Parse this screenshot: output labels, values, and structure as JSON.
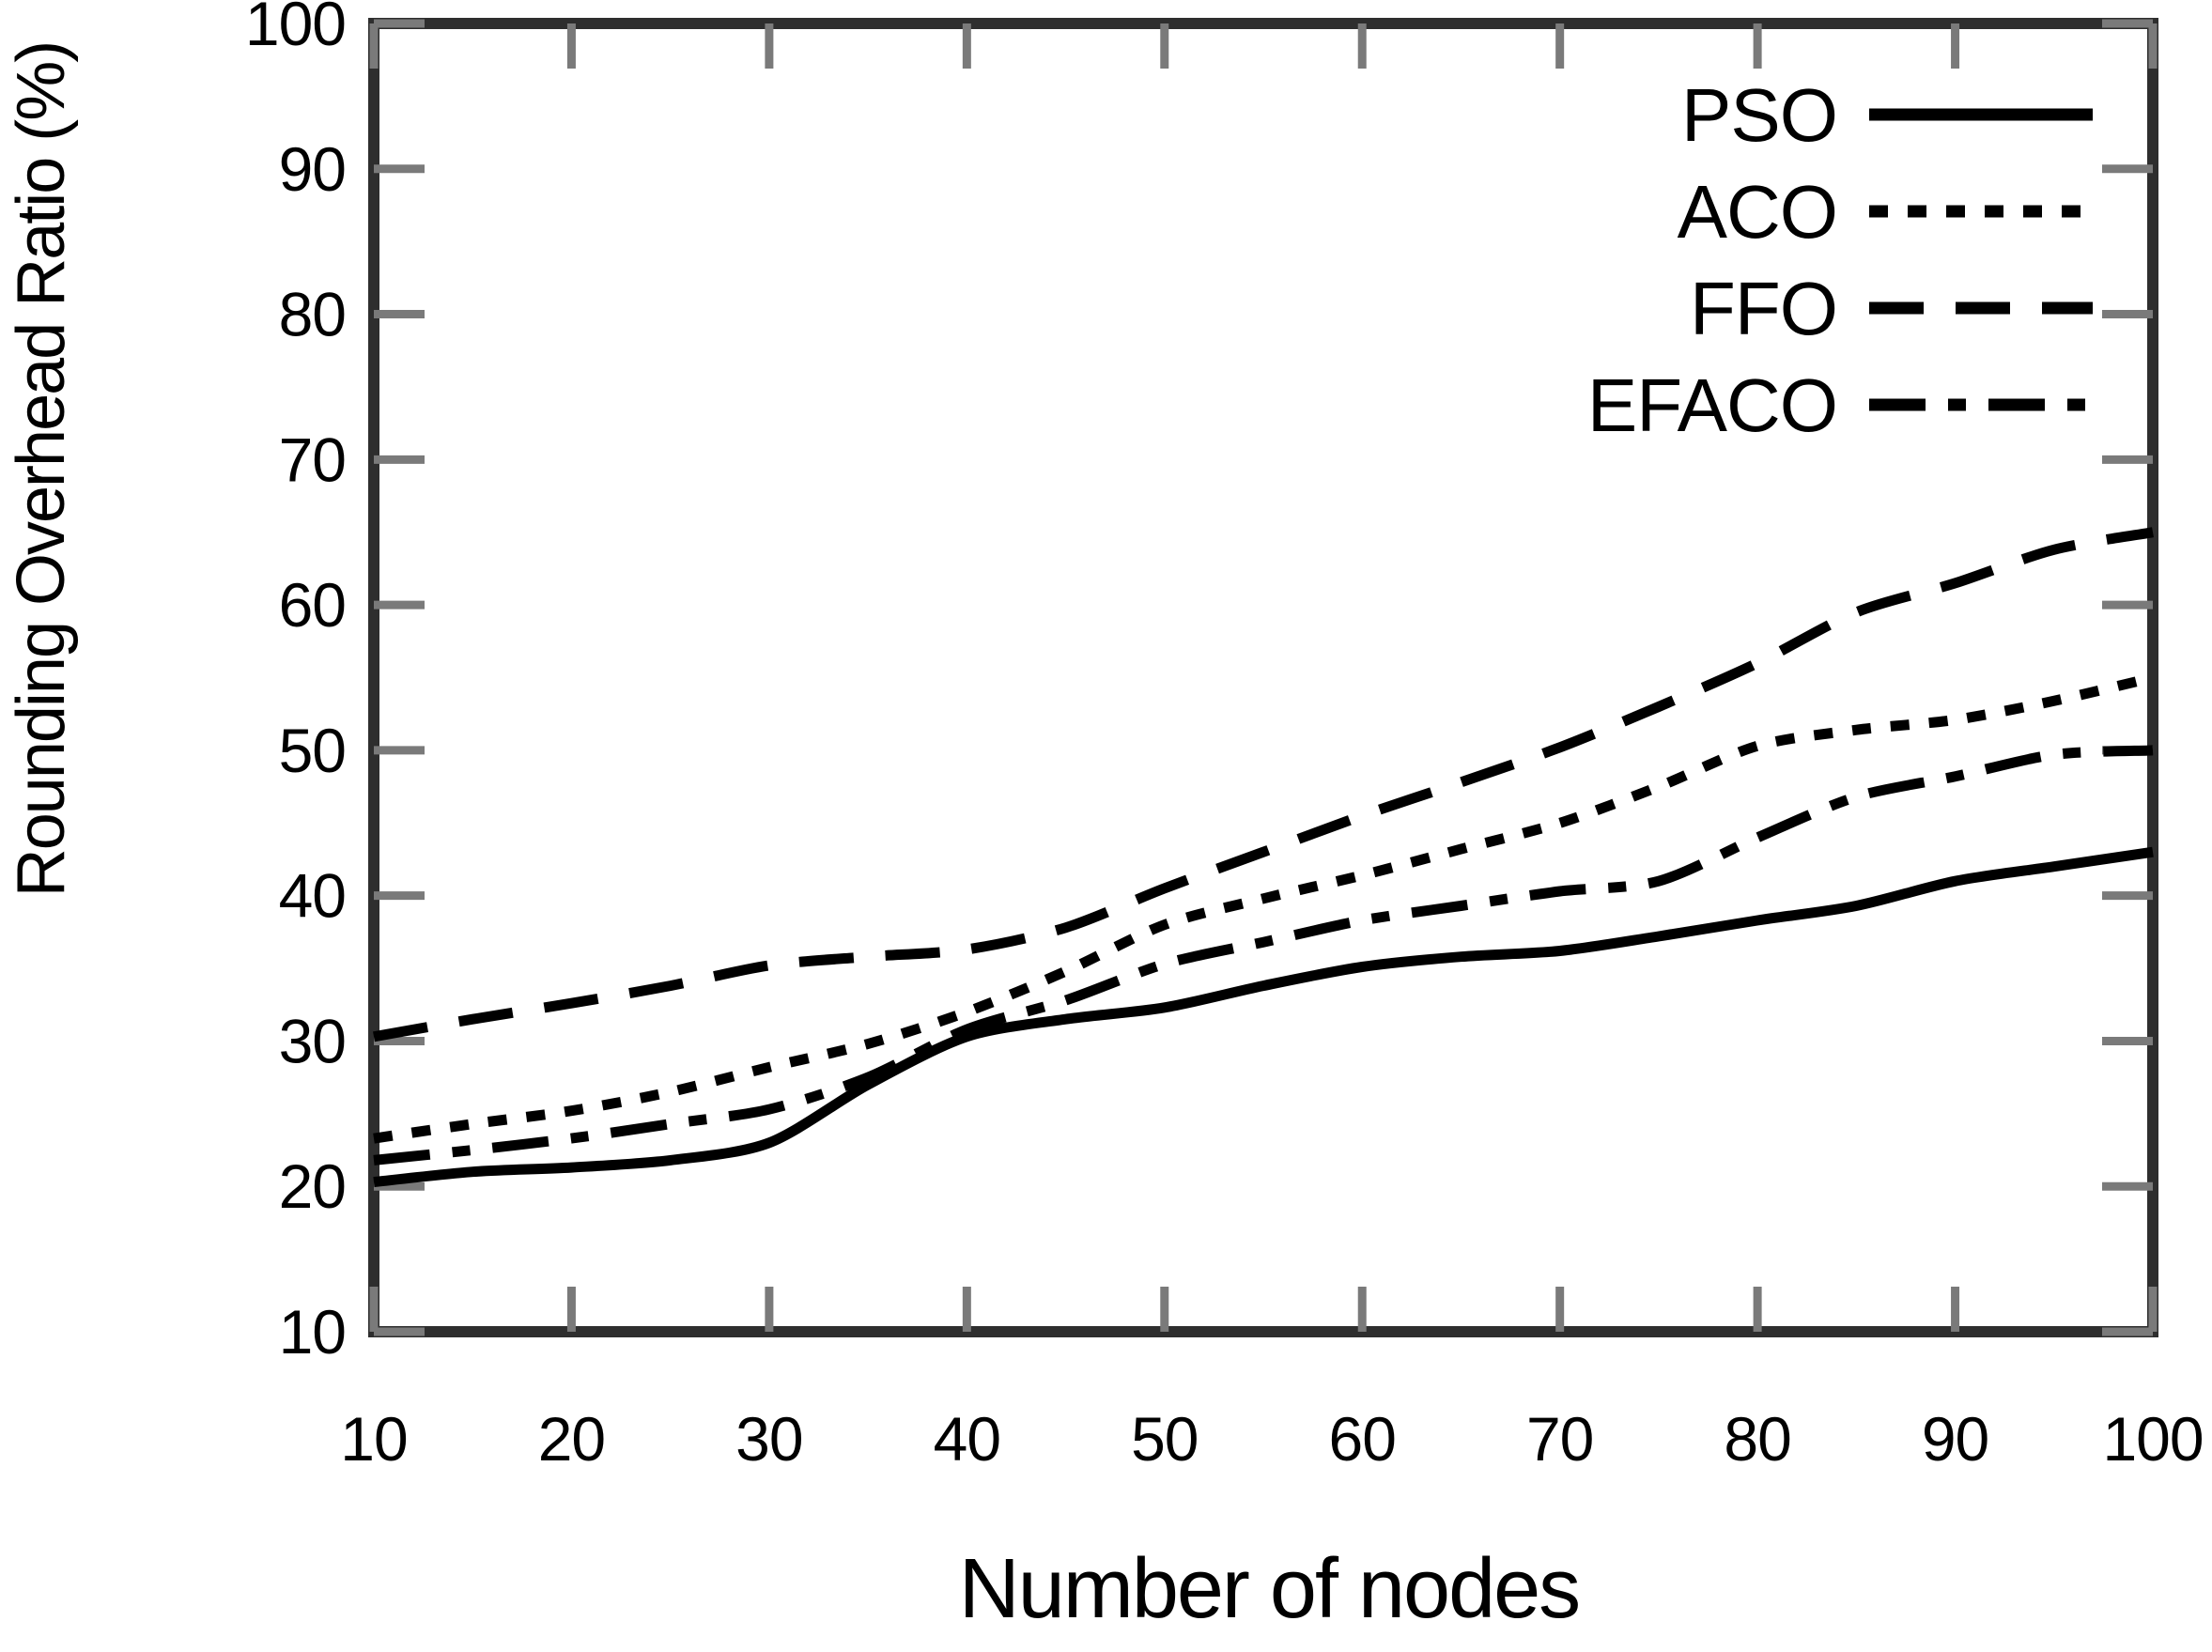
{
  "figure": {
    "background_color": "#ffffff",
    "border_color": "#2e2e2e",
    "tick_color": "#7a7a7a",
    "text_color": "#000000",
    "curve_color": "#000000"
  },
  "chart_data": {
    "type": "line",
    "title": "",
    "xlabel": "Number of nodes",
    "ylabel": "Rounding Overhead Ratio (%)",
    "xlim": [
      10,
      100
    ],
    "ylim": [
      10,
      100
    ],
    "x_ticks": [
      10,
      20,
      30,
      40,
      50,
      60,
      70,
      80,
      90,
      100
    ],
    "y_ticks": [
      10,
      20,
      30,
      40,
      50,
      60,
      70,
      80,
      90,
      100
    ],
    "grid": false,
    "legend_position": "top-right",
    "x": [
      10,
      15,
      20,
      25,
      30,
      35,
      40,
      45,
      50,
      55,
      60,
      65,
      70,
      75,
      80,
      85,
      90,
      95,
      100
    ],
    "series": [
      {
        "name": "PSO",
        "line_style": "solid",
        "values": [
          20.3,
          21.0,
          21.3,
          21.8,
          23.0,
          27.0,
          30.3,
          31.5,
          32.3,
          33.8,
          35.1,
          35.8,
          36.2,
          37.2,
          38.3,
          39.3,
          41.0,
          42.0,
          43.0
        ]
      },
      {
        "name": "ACO",
        "line_style": "dotted",
        "values": [
          23.3,
          24.3,
          25.2,
          26.5,
          28.2,
          29.8,
          32.0,
          34.8,
          38.0,
          39.8,
          41.4,
          43.2,
          45.0,
          47.5,
          50.3,
          51.4,
          52.1,
          53.4,
          55.0
        ]
      },
      {
        "name": "FFO",
        "line_style": "dashed",
        "values": [
          30.3,
          31.5,
          32.6,
          33.8,
          35.2,
          35.8,
          36.3,
          37.8,
          40.5,
          43.0,
          45.5,
          47.8,
          50.2,
          53.0,
          56.0,
          59.5,
          61.5,
          63.8,
          65.0
        ]
      },
      {
        "name": "EFACO",
        "line_style": "dashdot",
        "values": [
          21.8,
          22.5,
          23.3,
          24.3,
          25.3,
          27.5,
          30.8,
          32.8,
          35.3,
          36.8,
          38.3,
          39.3,
          40.3,
          41.0,
          44.0,
          46.8,
          48.2,
          49.7,
          50.0
        ]
      }
    ]
  }
}
